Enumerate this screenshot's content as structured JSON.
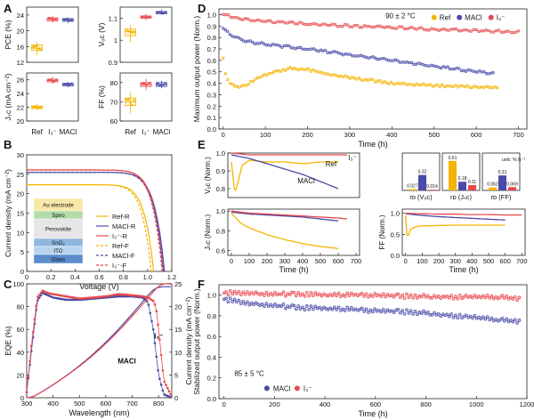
{
  "figure": {
    "panel_letters": [
      "A",
      "B",
      "C",
      "D",
      "E",
      "F"
    ]
  },
  "colors": {
    "ref": "#f4b400",
    "maci": "#4a4aa8",
    "i3": "#e8484d",
    "tile_eff": "#f8e8a8",
    "spiro": "#b2dca8",
    "perov": "#e6e6e6",
    "sno2": "#8fb8e0",
    "ito": "#b9d5ee",
    "glass": "#5b8ccc"
  },
  "chart_data": [
    {
      "panel": "A",
      "type": "box",
      "categories": [
        "Ref",
        "I₃⁻",
        "MACl"
      ],
      "subplots": [
        {
          "ylabel": "PCE (%)",
          "ylim": [
            12,
            26
          ],
          "yticks": [
            12,
            16,
            20,
            24
          ],
          "medians": [
            15.6,
            22.9,
            22.8
          ],
          "q1": [
            15.0,
            22.5,
            22.4
          ],
          "q3": [
            16.4,
            23.3,
            23.1
          ],
          "min": [
            13.8,
            22.0,
            22.0
          ],
          "max": [
            17.2,
            23.8,
            23.4
          ]
        },
        {
          "ylabel": "Vₒᴄ (V)",
          "ylim": [
            0.9,
            1.15
          ],
          "yticks": [
            0.9,
            1.0,
            1.1
          ],
          "medians": [
            1.04,
            1.105,
            1.125
          ],
          "q1": [
            1.02,
            1.1,
            1.12
          ],
          "q3": [
            1.05,
            1.11,
            1.13
          ],
          "min": [
            0.99,
            1.09,
            1.115
          ],
          "max": [
            1.07,
            1.12,
            1.14
          ]
        },
        {
          "ylabel": "Jₛᴄ (mA cm⁻²)",
          "ylim": [
            20,
            27
          ],
          "yticks": [
            20,
            22,
            24,
            26
          ],
          "medians": [
            22.0,
            25.9,
            25.3
          ],
          "q1": [
            21.8,
            25.7,
            25.1
          ],
          "q3": [
            22.2,
            26.1,
            25.5
          ],
          "min": [
            21.6,
            25.4,
            24.9
          ],
          "max": [
            22.5,
            26.4,
            25.7
          ]
        },
        {
          "ylabel": "FF (%)",
          "ylim": [
            60,
            85
          ],
          "yticks": [
            60,
            70,
            80
          ],
          "medians": [
            70,
            79,
            79
          ],
          "q1": [
            68,
            78,
            78
          ],
          "q3": [
            72,
            80,
            80
          ],
          "min": [
            64,
            76,
            77
          ],
          "max": [
            75,
            82,
            81
          ]
        }
      ]
    },
    {
      "panel": "B",
      "type": "line",
      "xlabel": "Voltage (V)",
      "ylabel": "Current density (mA cm⁻²)",
      "xlim": [
        0,
        1.2
      ],
      "ylim": [
        0,
        30
      ],
      "xticks": [
        0,
        0.2,
        0.4,
        0.6,
        0.8,
        1.0,
        1.2
      ],
      "yticks": [
        0,
        5,
        10,
        15,
        20,
        25,
        30
      ],
      "series": [
        {
          "name": "Ref-R",
          "jsc": 22.3,
          "voc": 1.05,
          "dash": false,
          "color": "ref"
        },
        {
          "name": "MACl-R",
          "jsc": 25.5,
          "voc": 1.14,
          "dash": false,
          "color": "maci"
        },
        {
          "name": "I₃⁻-R",
          "jsc": 26.1,
          "voc": 1.13,
          "dash": false,
          "color": "i3"
        },
        {
          "name": "Ref-F",
          "jsc": 22.3,
          "voc": 1.03,
          "dash": true,
          "color": "ref"
        },
        {
          "name": "MACl-F",
          "jsc": 25.5,
          "voc": 1.13,
          "dash": true,
          "color": "maci"
        },
        {
          "name": "I₃⁻-F",
          "jsc": 26.1,
          "voc": 1.12,
          "dash": true,
          "color": "i3"
        }
      ],
      "device_stack": [
        "Au electrode",
        "Spiro",
        "Perovskite",
        "SnO₂",
        "ITO",
        "Glass"
      ]
    },
    {
      "panel": "C",
      "type": "line",
      "xlabel": "Wavelength (nm)",
      "ylabel": "EQE (%)",
      "ylabel_right": "Current density (mA cm⁻²)",
      "xlim": [
        300,
        850
      ],
      "ylim": [
        0,
        100
      ],
      "ylim_right": [
        0,
        25
      ],
      "xticks": [
        300,
        400,
        500,
        600,
        700,
        800
      ],
      "yticks": [
        0,
        20,
        40,
        60,
        80,
        100
      ],
      "yticks_right": [
        0,
        5,
        10,
        15,
        20,
        25
      ],
      "labels": [
        "MACl",
        "I₃⁻"
      ],
      "eqe_x": [
        300,
        320,
        340,
        360,
        380,
        400,
        450,
        500,
        550,
        600,
        650,
        700,
        740,
        760,
        780,
        790,
        800,
        820,
        850
      ],
      "series": [
        {
          "name": "MACl",
          "color": "maci",
          "eqe": [
            5,
            45,
            85,
            92,
            90,
            88,
            86,
            86,
            87,
            88,
            89,
            89,
            88,
            84,
            60,
            40,
            20,
            3,
            0
          ]
        },
        {
          "name": "I₃⁻",
          "color": "i3",
          "eqe": [
            5,
            50,
            88,
            94,
            92,
            91,
            89,
            87,
            88,
            89,
            91,
            90,
            89,
            88,
            85,
            80,
            60,
            15,
            1
          ]
        }
      ]
    },
    {
      "panel": "D",
      "type": "scatter-line",
      "xlabel": "Time (h)",
      "ylabel": "Maximum output power (Norm.)",
      "xlim": [
        0,
        720
      ],
      "ylim": [
        0,
        1.05
      ],
      "xticks": [
        0,
        100,
        200,
        300,
        400,
        500,
        600,
        700
      ],
      "yticks": [
        0.0,
        0.1,
        0.2,
        0.3,
        0.4,
        0.5,
        0.6,
        0.7,
        0.8,
        0.9,
        1.0
      ],
      "annotation": "90 ± 2 °C",
      "series": [
        {
          "name": "Ref",
          "color": "ref",
          "x": [
            0,
            5,
            15,
            30,
            50,
            80,
            120,
            160,
            200,
            250,
            300,
            400,
            500,
            600,
            650
          ],
          "y": [
            0.62,
            0.48,
            0.4,
            0.37,
            0.38,
            0.44,
            0.5,
            0.53,
            0.52,
            0.48,
            0.45,
            0.4,
            0.38,
            0.37,
            0.36
          ]
        },
        {
          "name": "MACl",
          "color": "maci",
          "x": [
            0,
            20,
            50,
            100,
            150,
            200,
            300,
            400,
            500,
            600,
            640
          ],
          "y": [
            0.88,
            0.82,
            0.77,
            0.74,
            0.72,
            0.7,
            0.65,
            0.6,
            0.55,
            0.5,
            0.49
          ]
        },
        {
          "name": "I₃⁻",
          "color": "i3",
          "x": [
            0,
            20,
            50,
            100,
            200,
            300,
            400,
            500,
            600,
            700
          ],
          "y": [
            1.0,
            0.98,
            0.96,
            0.94,
            0.92,
            0.9,
            0.89,
            0.87,
            0.86,
            0.85
          ]
        }
      ]
    },
    {
      "panel": "E",
      "type": "line",
      "subplots": [
        {
          "ylabel": "Vₒᴄ (Norm.)",
          "ylim": [
            0.75,
            1.0
          ],
          "yticks": [
            0.8,
            0.9,
            1.0
          ],
          "labels": [
            "Ref",
            "MACl",
            "I₃⁻"
          ],
          "series": [
            {
              "name": "Ref",
              "color": "ref",
              "x": [
                0,
                20,
                40,
                60,
                100,
                200,
                300,
                400,
                500,
                600
              ],
              "y": [
                0.95,
                0.77,
                0.85,
                0.93,
                0.96,
                0.95,
                0.95,
                0.94,
                0.95,
                0.95
              ]
            },
            {
              "name": "MACl",
              "color": "maci",
              "x": [
                0,
                100,
                200,
                300,
                400,
                500,
                600
              ],
              "y": [
                0.99,
                0.97,
                0.94,
                0.91,
                0.88,
                0.84,
                0.8
              ]
            },
            {
              "name": "I₃⁻",
              "color": "i3",
              "x": [
                0,
                100,
                200,
                300,
                400,
                500,
                600,
                650
              ],
              "y": [
                1.0,
                0.99,
                0.99,
                0.99,
                0.99,
                0.99,
                0.99,
                0.99
              ]
            }
          ]
        },
        {
          "ylabel": "Jₛᴄ (Norm.)",
          "xlabel": "Time (h)",
          "xlim": [
            0,
            700
          ],
          "ylim": [
            0.55,
            1.02
          ],
          "yticks": [
            0.6,
            0.8,
            1.0
          ],
          "xticks": [
            0,
            100,
            200,
            300,
            400,
            500,
            600,
            700
          ],
          "series": [
            {
              "name": "Ref",
              "color": "ref",
              "x": [
                0,
                50,
                100,
                200,
                300,
                400,
                500,
                600
              ],
              "y": [
                0.98,
                0.88,
                0.83,
                0.76,
                0.71,
                0.67,
                0.64,
                0.62
              ]
            },
            {
              "name": "MACl",
              "color": "maci",
              "x": [
                0,
                100,
                200,
                300,
                400,
                500,
                600
              ],
              "y": [
                0.99,
                0.97,
                0.96,
                0.95,
                0.94,
                0.92,
                0.9
              ]
            },
            {
              "name": "I₃⁻",
              "color": "i3",
              "x": [
                0,
                100,
                200,
                300,
                400,
                500,
                600,
                650
              ],
              "y": [
                1.0,
                0.98,
                0.97,
                0.96,
                0.95,
                0.94,
                0.93,
                0.92
              ]
            }
          ]
        },
        {
          "ylabel": "FF (Norm.)",
          "xlabel": "Time (h)",
          "xlim": [
            0,
            700
          ],
          "ylim": [
            0.0,
            1.1
          ],
          "yticks": [
            0.0,
            0.5,
            1.0
          ],
          "xticks": [
            0,
            100,
            200,
            300,
            400,
            500,
            600,
            700
          ],
          "series": [
            {
              "name": "Ref",
              "color": "ref",
              "x": [
                0,
                10,
                30,
                60,
                100,
                200,
                300,
                400,
                500,
                600
              ],
              "y": [
                0.95,
                0.4,
                0.62,
                0.68,
                0.7,
                0.71,
                0.72,
                0.72,
                0.72,
                0.72
              ]
            },
            {
              "name": "MACl",
              "color": "maci",
              "x": [
                0,
                100,
                200,
                300,
                400,
                500,
                600
              ],
              "y": [
                0.99,
                0.95,
                0.92,
                0.9,
                0.88,
                0.86,
                0.84
              ]
            },
            {
              "name": "I₃⁻",
              "color": "i3",
              "x": [
                0,
                100,
                200,
                300,
                400,
                500,
                600,
                700
              ],
              "y": [
                1.0,
                0.99,
                0.98,
                0.98,
                0.97,
                0.97,
                0.96,
                0.96
              ]
            }
          ]
        }
      ],
      "rate_bars": {
        "unit": "unit: % h⁻¹",
        "groups": [
          {
            "label": "rᴅ (Vₒᴄ)",
            "values": [
              0.027,
              0.32,
              0.014
            ],
            "labels": [
              "0.027",
              "0.32",
              "0.014"
            ]
          },
          {
            "label": "rᴅ (Jₛᴄ)",
            "values": [
              0.61,
              0.18,
              0.11
            ],
            "labels": [
              "0.61",
              "0.18",
              "0.11"
            ]
          },
          {
            "label": "rᴅ (FF)",
            "values": [
              0.062,
              0.31,
              0.069
            ],
            "labels": [
              "0.062",
              "0.31",
              "0.069"
            ]
          }
        ],
        "order": [
          "ref",
          "maci",
          "i3"
        ]
      }
    },
    {
      "panel": "F",
      "type": "scatter",
      "xlabel": "Time (h)",
      "ylabel": "Stabilized output power (Norm.)",
      "xlim": [
        0,
        1200
      ],
      "ylim": [
        0,
        1.1
      ],
      "xticks": [
        0,
        200,
        400,
        600,
        800,
        1000,
        1200
      ],
      "yticks": [
        0.0,
        0.2,
        0.4,
        0.6,
        0.8,
        1.0
      ],
      "annotation": "85 ± 5 °C",
      "series": [
        {
          "name": "MACl",
          "color": "maci",
          "x": [
            0,
            100,
            200,
            300,
            400,
            500,
            600,
            700,
            800,
            900,
            1000,
            1100,
            1170
          ],
          "y": [
            0.96,
            0.92,
            0.9,
            0.88,
            0.87,
            0.86,
            0.85,
            0.84,
            0.83,
            0.8,
            0.78,
            0.76,
            0.75
          ]
        },
        {
          "name": "I₃⁻",
          "color": "i3",
          "x": [
            0,
            100,
            200,
            300,
            400,
            500,
            600,
            700,
            800,
            900,
            1000,
            1100,
            1170
          ],
          "y": [
            1.02,
            1.02,
            1.01,
            1.01,
            1.0,
            1.0,
            1.0,
            0.99,
            0.99,
            0.98,
            0.98,
            0.98,
            0.97
          ]
        }
      ]
    }
  ]
}
